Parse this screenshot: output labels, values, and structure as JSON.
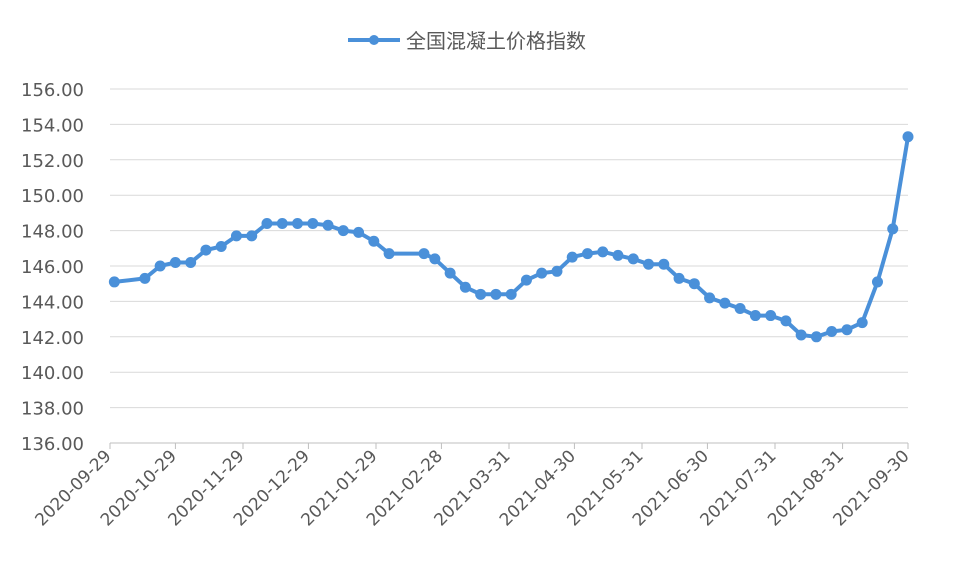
{
  "chart_data": {
    "type": "line",
    "title": "",
    "xlabel": "",
    "ylabel": "",
    "ylim": [
      136,
      156
    ],
    "y_ticks": [
      "136.00",
      "138.00",
      "140.00",
      "142.00",
      "144.00",
      "146.00",
      "148.00",
      "150.00",
      "152.00",
      "154.00",
      "156.00"
    ],
    "x_range": [
      "2020-09-29",
      "2021-09-30"
    ],
    "x_ticks": [
      "2020-09-29",
      "2020-10-29",
      "2020-11-29",
      "2020-12-29",
      "2021-01-29",
      "2021-02-28",
      "2021-03-31",
      "2021-04-30",
      "2021-05-31",
      "2021-06-30",
      "2021-07-31",
      "2021-08-31",
      "2021-09-30"
    ],
    "grid": "horizontal",
    "legend_position": "top",
    "color": "#4a90d9",
    "series": [
      {
        "name": "全国混凝土价格指数",
        "points": [
          [
            "2020-10-01",
            145.1
          ],
          [
            "2020-10-15",
            145.3
          ],
          [
            "2020-10-22",
            146.0
          ],
          [
            "2020-10-29",
            146.2
          ],
          [
            "2020-11-05",
            146.2
          ],
          [
            "2020-11-12",
            146.9
          ],
          [
            "2020-11-19",
            147.1
          ],
          [
            "2020-11-26",
            147.7
          ],
          [
            "2020-12-03",
            147.7
          ],
          [
            "2020-12-10",
            148.4
          ],
          [
            "2020-12-17",
            148.4
          ],
          [
            "2020-12-24",
            148.4
          ],
          [
            "2020-12-31",
            148.4
          ],
          [
            "2021-01-07",
            148.3
          ],
          [
            "2021-01-14",
            148.0
          ],
          [
            "2021-01-21",
            147.9
          ],
          [
            "2021-01-28",
            147.4
          ],
          [
            "2021-02-04",
            146.7
          ],
          [
            "2021-02-20",
            146.7
          ],
          [
            "2021-02-25",
            146.4
          ],
          [
            "2021-03-04",
            145.6
          ],
          [
            "2021-03-11",
            144.8
          ],
          [
            "2021-03-18",
            144.4
          ],
          [
            "2021-03-25",
            144.4
          ],
          [
            "2021-04-01",
            144.4
          ],
          [
            "2021-04-08",
            145.2
          ],
          [
            "2021-04-15",
            145.6
          ],
          [
            "2021-04-22",
            145.7
          ],
          [
            "2021-04-29",
            146.5
          ],
          [
            "2021-05-06",
            146.7
          ],
          [
            "2021-05-13",
            146.8
          ],
          [
            "2021-05-20",
            146.6
          ],
          [
            "2021-05-27",
            146.4
          ],
          [
            "2021-06-03",
            146.1
          ],
          [
            "2021-06-10",
            146.1
          ],
          [
            "2021-06-17",
            145.3
          ],
          [
            "2021-06-24",
            145.0
          ],
          [
            "2021-07-01",
            144.2
          ],
          [
            "2021-07-08",
            143.9
          ],
          [
            "2021-07-15",
            143.6
          ],
          [
            "2021-07-22",
            143.2
          ],
          [
            "2021-07-29",
            143.2
          ],
          [
            "2021-08-05",
            142.9
          ],
          [
            "2021-08-12",
            142.1
          ],
          [
            "2021-08-19",
            142.0
          ],
          [
            "2021-08-26",
            142.3
          ],
          [
            "2021-09-02",
            142.4
          ],
          [
            "2021-09-09",
            142.8
          ],
          [
            "2021-09-16",
            145.1
          ],
          [
            "2021-09-23",
            148.1
          ],
          [
            "2021-09-30",
            153.3
          ]
        ]
      }
    ]
  }
}
